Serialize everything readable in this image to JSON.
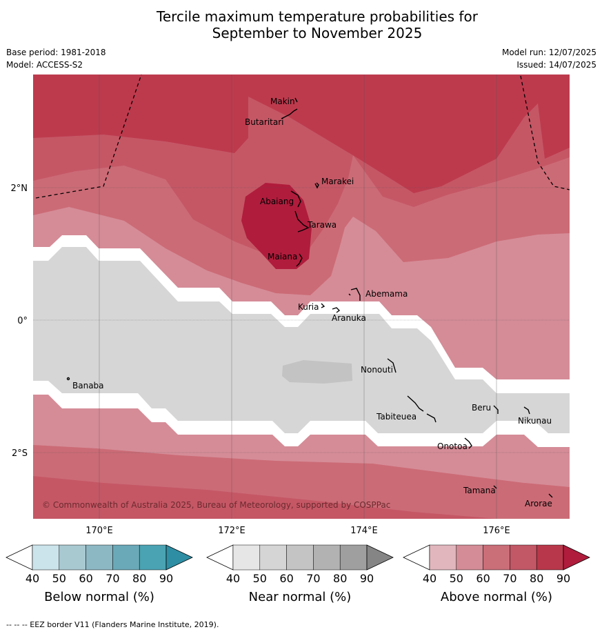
{
  "title_line1": "Tercile maximum temperature probabilities for",
  "title_line2": "September to November 2025",
  "base_period": "Base period: 1981-2018",
  "model": "Model: ACCESS-S2",
  "model_run": "Model run: 12/07/2025",
  "issued": "Issued: 14/07/2025",
  "map": {
    "lon_ticks": [
      "170°E",
      "172°E",
      "174°E",
      "176°E"
    ],
    "lat_ticks": [
      "2°N",
      "0°",
      "2°S"
    ],
    "copyright": "© Commonwealth of Australia 2025, Bureau of Meteorology, supported by COSPPac",
    "places": [
      "Makin",
      "Butaritari",
      "Marakei",
      "Abaiang",
      "Tarawa",
      "Maiana",
      "Abemama",
      "Kuria",
      "Aranuka",
      "Nonouti",
      "Banaba",
      "Beru",
      "Tabiteuea",
      "Nikunau",
      "Onotoa",
      "Tamana",
      "Arorae"
    ]
  },
  "colorbars": [
    {
      "title": "Below normal (%)",
      "ticks": [
        "40",
        "50",
        "60",
        "70",
        "80",
        "90"
      ],
      "colors": [
        "#ffffff",
        "#cbe3ea",
        "#a9c9d1",
        "#8cb8c4",
        "#6aa9b8",
        "#4aa3b3",
        "#2e8ea4"
      ]
    },
    {
      "title": "Near normal (%)",
      "ticks": [
        "40",
        "50",
        "60",
        "70",
        "80",
        "90"
      ],
      "colors": [
        "#ffffff",
        "#e6e6e6",
        "#d5d5d5",
        "#c4c4c4",
        "#b2b2b2",
        "#9f9f9f",
        "#858585"
      ]
    },
    {
      "title": "Above normal (%)",
      "ticks": [
        "40",
        "50",
        "60",
        "70",
        "80",
        "90"
      ],
      "colors": [
        "#ffffff",
        "#e1b6bd",
        "#d48c96",
        "#ca6e78",
        "#c25765",
        "#b9374a",
        "#b01c3c"
      ]
    }
  ],
  "footer": "--  --  -- EEZ border V11 (Flanders Marine Institute, 2019)."
}
